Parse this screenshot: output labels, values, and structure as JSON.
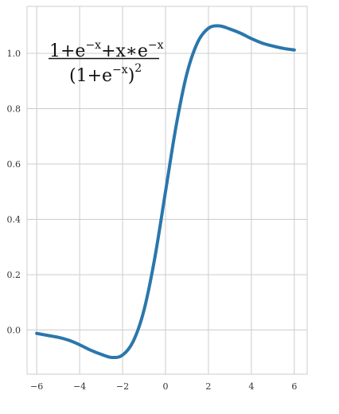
{
  "chart_data": {
    "type": "line",
    "title": "",
    "xlabel": "",
    "ylabel": "",
    "xlim": [
      -6.45,
      6.6
    ],
    "ylim": [
      -0.16,
      1.17
    ],
    "xticks": [
      -6,
      -4,
      -2,
      0,
      2,
      4,
      6
    ],
    "yticks": [
      0.0,
      0.2,
      0.4,
      0.6,
      0.8,
      1.0
    ],
    "xtick_labels": [
      "−6",
      "−4",
      "−2",
      "0",
      "2",
      "4",
      "6"
    ],
    "ytick_labels": [
      "0.0",
      "0.2",
      "0.4",
      "0.6",
      "0.8",
      "1.0"
    ],
    "grid": true,
    "legend": "none",
    "annotation": {
      "numerator": {
        "base": "1+e",
        "exp1": "−x",
        "mid": "+x∗e",
        "exp2": "−x"
      },
      "denominator": {
        "open": "(1+e",
        "exp": "−x",
        "close": ")",
        "power": "2"
      }
    },
    "series": [
      {
        "x": [
          -6,
          -5.5,
          -5,
          -4.5,
          -4,
          -3.5,
          -3,
          -2.5,
          -2,
          -1.5,
          -1,
          -0.5,
          0,
          0.5,
          1,
          1.5,
          2,
          2.5,
          3,
          3.5,
          4,
          4.5,
          5,
          5.5,
          6
        ],
        "y": [
          -0.0124,
          -0.0197,
          -0.0266,
          -0.0373,
          -0.0535,
          -0.0728,
          -0.0881,
          -0.0995,
          -0.0908,
          -0.0405,
          0.0722,
          0.26,
          0.5,
          0.74,
          0.9277,
          1.0405,
          1.0908,
          1.0995,
          1.0881,
          1.0728,
          1.0535,
          1.0373,
          1.0266,
          1.018,
          1.0124
        ],
        "color": "#2a77ac"
      }
    ]
  }
}
